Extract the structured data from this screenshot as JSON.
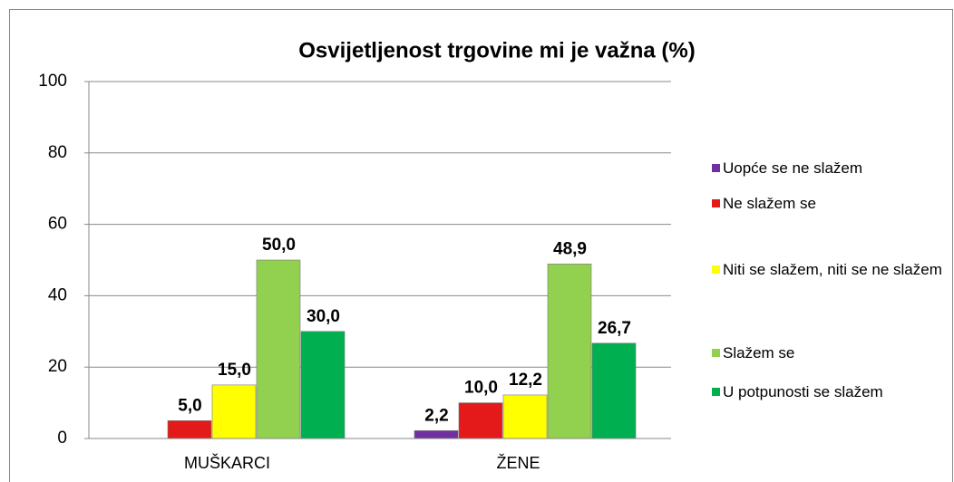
{
  "chart_data": {
    "type": "bar",
    "title": "Osvijetljenost trgovine mi je važna (%)",
    "categories": [
      "MUŠKARCI",
      "ŽENE"
    ],
    "series": [
      {
        "name": "Uopće se ne slažem",
        "color": "#7030a0",
        "values": [
          0,
          2.2
        ],
        "value_labels": [
          null,
          "2,2"
        ]
      },
      {
        "name": "Ne slažem se",
        "color": "#e41a1a",
        "values": [
          5.0,
          10.0
        ],
        "value_labels": [
          "5,0",
          "10,0"
        ]
      },
      {
        "name": "Niti se slažem, niti se ne slažem",
        "color": "#ffff00",
        "values": [
          15.0,
          12.2
        ],
        "value_labels": [
          "15,0",
          "12,2"
        ]
      },
      {
        "name": "Slažem se",
        "color": "#92d050",
        "values": [
          50.0,
          48.9
        ],
        "value_labels": [
          "50,0",
          "48,9"
        ]
      },
      {
        "name": "U potpunosti se slažem",
        "color": "#00b050",
        "values": [
          30.0,
          26.7
        ],
        "value_labels": [
          "30,0",
          "26,7"
        ]
      }
    ],
    "ylim": [
      0,
      100
    ],
    "yticks": [
      0,
      20,
      40,
      60,
      80,
      100
    ],
    "grid": true,
    "legend": "right"
  }
}
